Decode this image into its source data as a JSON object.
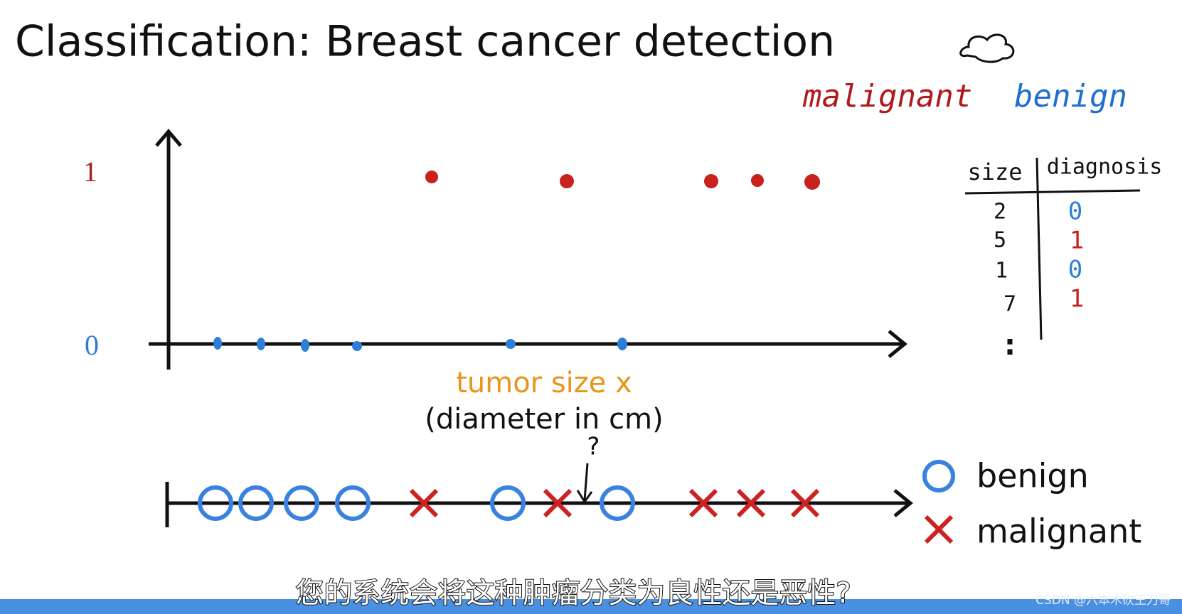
{
  "title": "Classification: Breast cancer detection",
  "labels": {
    "malignant": "malignant",
    "benign": "benign"
  },
  "plot": {
    "y_high": "1",
    "y_low": "0",
    "x_label": "tumor size x",
    "x_sublabel": "(diameter in cm)",
    "question": "?"
  },
  "legend": {
    "benign": "benign",
    "malignant": "malignant"
  },
  "table": {
    "header": [
      "size",
      "diagnosis"
    ],
    "rows": [
      [
        "2",
        "0"
      ],
      [
        "5",
        "1"
      ],
      [
        "1",
        "0"
      ],
      [
        "7",
        "1"
      ]
    ],
    "more": ":"
  },
  "subtitle": "您的系统会将这种肿瘤分类为良性还是恶性?",
  "watermark": "CSDN @六本木砍王刀哥"
}
